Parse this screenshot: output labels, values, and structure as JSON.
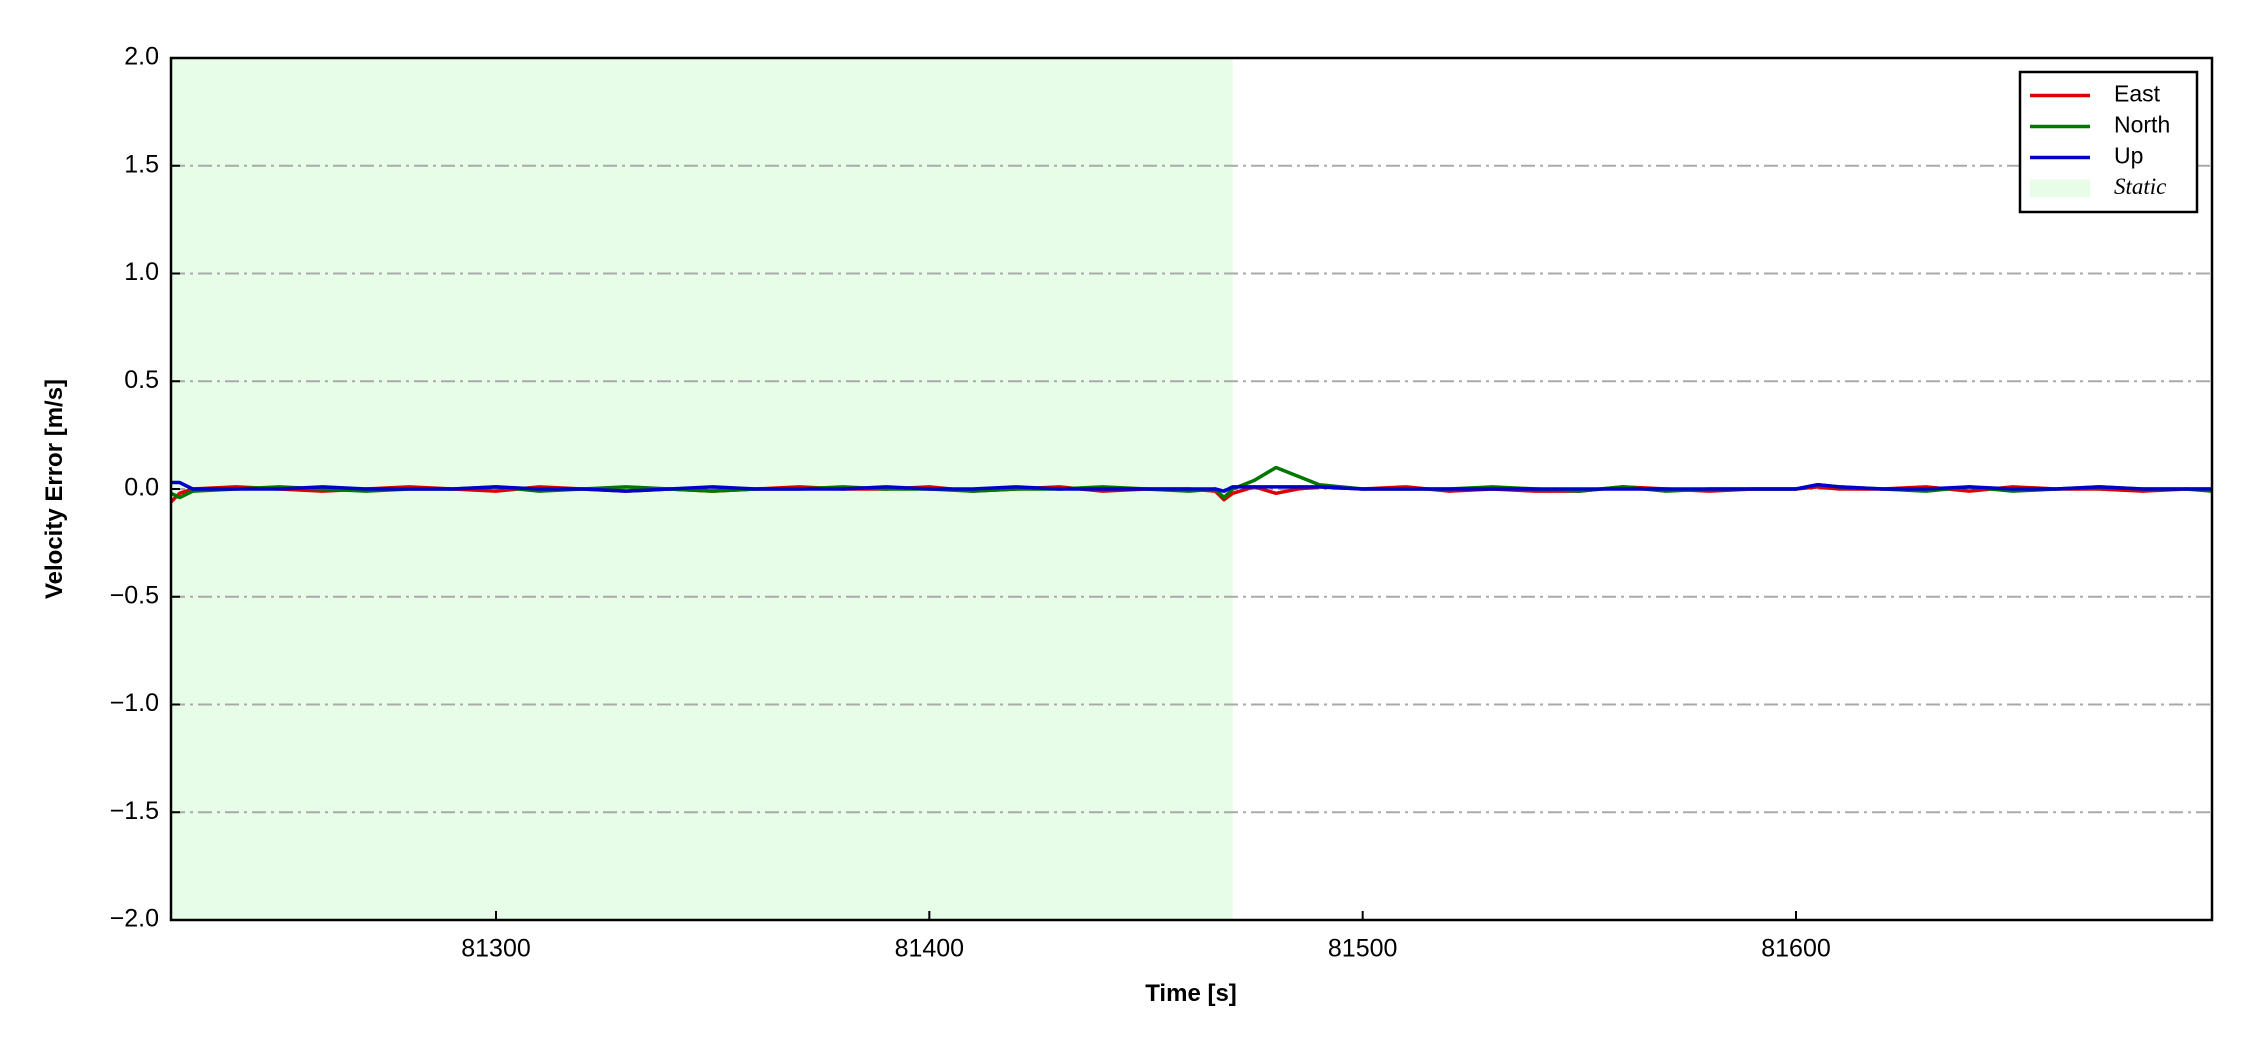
{
  "chart_data": {
    "type": "line",
    "xlabel": "Time [s]",
    "ylabel": "Velocity Error [m/s]",
    "xlim": [
      81225,
      81696
    ],
    "ylim": [
      -2.0,
      2.0
    ],
    "xticks": [
      81300,
      81400,
      81500,
      81600
    ],
    "yticks": [
      {
        "value": -2.0,
        "label": "−2.0"
      },
      {
        "value": -1.5,
        "label": "−1.5"
      },
      {
        "value": -1.0,
        "label": "−1.0"
      },
      {
        "value": -0.5,
        "label": "−0.5"
      },
      {
        "value": 0.0,
        "label": "0.0"
      },
      0.5,
      {
        "value": 1.0,
        "label": "1.0"
      },
      1.5,
      {
        "value": 2.0,
        "label": "2.0"
      }
    ],
    "grid": true,
    "legend": "upper right",
    "spans": [
      {
        "name": "Static",
        "start": 81225,
        "end": 81470,
        "color": "#e8fde8"
      }
    ],
    "x": [
      81225,
      81227,
      81230,
      81240,
      81250,
      81260,
      81270,
      81280,
      81290,
      81300,
      81310,
      81320,
      81330,
      81340,
      81350,
      81360,
      81370,
      81380,
      81390,
      81400,
      81410,
      81420,
      81430,
      81440,
      81450,
      81460,
      81466,
      81468,
      81470,
      81475,
      81480,
      81485,
      81490,
      81500,
      81510,
      81520,
      81530,
      81540,
      81550,
      81560,
      81570,
      81580,
      81590,
      81600,
      81605,
      81610,
      81620,
      81630,
      81640,
      81650,
      81660,
      81670,
      81680,
      81690,
      81696
    ],
    "series": [
      {
        "name": "East",
        "color": "#dd0000",
        "values": [
          -0.06,
          -0.02,
          0,
          0.01,
          0,
          -0.01,
          0,
          0.01,
          0,
          -0.01,
          0.01,
          0,
          -0.01,
          0,
          -0.01,
          0,
          0.01,
          0,
          0,
          0.01,
          -0.01,
          0,
          0.01,
          -0.01,
          0,
          0,
          -0.01,
          -0.05,
          -0.02,
          0.01,
          -0.02,
          0,
          0.01,
          0,
          0.01,
          -0.01,
          0,
          -0.01,
          -0.01,
          0.01,
          0,
          -0.01,
          0,
          0,
          0.01,
          0,
          0,
          0.01,
          -0.01,
          0.01,
          0,
          0,
          -0.01,
          0,
          0
        ]
      },
      {
        "name": "North",
        "color": "#007700",
        "values": [
          -0.02,
          -0.04,
          -0.01,
          0,
          0.01,
          0,
          -0.01,
          0,
          0,
          0.01,
          -0.01,
          0,
          0.01,
          0,
          -0.01,
          0,
          0,
          0.01,
          0,
          0,
          -0.01,
          0,
          0,
          0.01,
          0,
          -0.01,
          0,
          -0.04,
          0,
          0.04,
          0.1,
          0.06,
          0.02,
          0,
          0,
          0,
          0.01,
          0,
          -0.01,
          0.01,
          -0.01,
          0,
          0,
          0,
          0.02,
          0.01,
          0,
          -0.01,
          0.01,
          -0.01,
          0,
          0.01,
          0,
          0,
          -0.01
        ]
      },
      {
        "name": "Up",
        "color": "#0000cc",
        "values": [
          0.03,
          0.03,
          0,
          0,
          0,
          0.01,
          0,
          0,
          0,
          0.01,
          0,
          0,
          -0.01,
          0,
          0.01,
          0,
          0,
          0,
          0.01,
          0,
          0,
          0.01,
          0,
          0,
          0,
          0,
          0,
          -0.01,
          0.01,
          0.01,
          0.01,
          0.01,
          0.01,
          0,
          0,
          0,
          0,
          0,
          0,
          0,
          0,
          0,
          0,
          0,
          0.02,
          0.01,
          0,
          0,
          0.01,
          0,
          0,
          0.01,
          0,
          0,
          0
        ]
      }
    ]
  }
}
